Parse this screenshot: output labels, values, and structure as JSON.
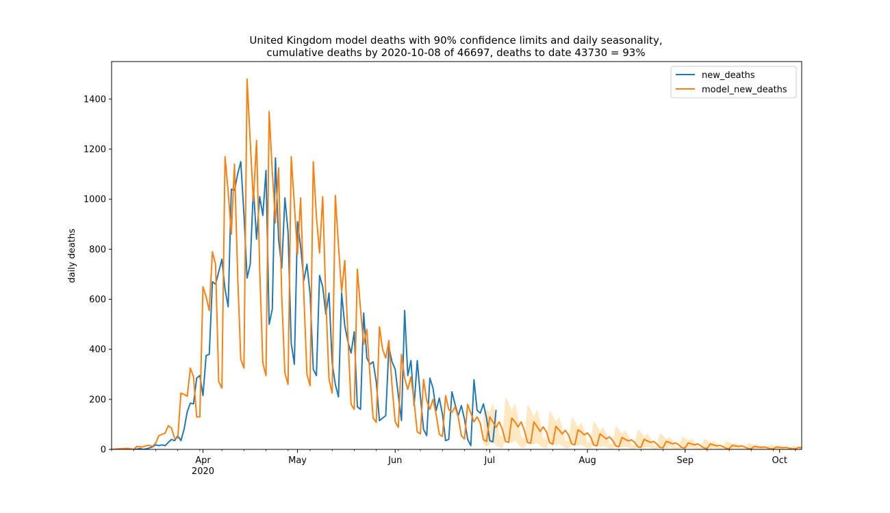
{
  "chart_data": {
    "type": "line",
    "title_line1": "United Kingdom model deaths with 90% confidence limits and daily seasonality,",
    "title_line2": "cumulative deaths by 2020-10-08 of 46697, deaths to date 43730 = 93%",
    "ylabel": "daily deaths",
    "xlabel": "",
    "x_range": [
      "2020-03-03",
      "2020-10-08"
    ],
    "ylim": [
      0,
      1550
    ],
    "grid": false,
    "legend_position": "top-right",
    "y_ticks": [
      0,
      200,
      400,
      600,
      800,
      1000,
      1200,
      1400
    ],
    "x_ticks": [
      {
        "date": "2020-04-01",
        "label": "Apr",
        "sublabel": "2020"
      },
      {
        "date": "2020-05-01",
        "label": "May",
        "sublabel": ""
      },
      {
        "date": "2020-06-01",
        "label": "Jun",
        "sublabel": ""
      },
      {
        "date": "2020-07-01",
        "label": "Jul",
        "sublabel": ""
      },
      {
        "date": "2020-08-01",
        "label": "Aug",
        "sublabel": ""
      },
      {
        "date": "2020-09-01",
        "label": "Sep",
        "sublabel": ""
      },
      {
        "date": "2020-10-01",
        "label": "Oct",
        "sublabel": ""
      }
    ],
    "series": [
      {
        "name": "new_deaths",
        "color": "#1f77b4",
        "start_date": "2020-03-03",
        "values": [
          0,
          0,
          0,
          1,
          0,
          1,
          1,
          0,
          1,
          3,
          0,
          2,
          6,
          10,
          18,
          15,
          18,
          15,
          28,
          40,
          35,
          55,
          35,
          80,
          150,
          185,
          182,
          285,
          295,
          215,
          375,
          380,
          670,
          660,
          710,
          760,
          640,
          570,
          1040,
          1035,
          1100,
          1150,
          940,
          685,
          740,
          1045,
          840,
          1010,
          935,
          1115,
          500,
          560,
          1165,
          840,
          725,
          1005,
          870,
          425,
          340,
          910,
          810,
          675,
          740,
          620,
          320,
          295,
          695,
          650,
          540,
          625,
          345,
          260,
          210,
          625,
          495,
          430,
          385,
          470,
          170,
          160,
          545,
          365,
          340,
          350,
          270,
          115,
          125,
          135,
          410,
          350,
          320,
          215,
          115,
          555,
          295,
          355,
          175,
          355,
          210,
          80,
          55,
          285,
          245,
          155,
          205,
          140,
          35,
          40,
          230,
          180,
          135,
          175,
          120,
          40,
          15,
          278,
          156,
          145,
          182,
          125,
          35,
          30,
          155
        ]
      },
      {
        "name": "model_new_deaths",
        "color": "#ff7f0e",
        "start_date": "2020-03-03",
        "values": [
          0,
          1,
          2,
          3,
          3,
          4,
          2,
          0,
          12,
          10,
          10,
          15,
          16,
          12,
          25,
          55,
          60,
          65,
          95,
          85,
          45,
          45,
          225,
          220,
          212,
          325,
          290,
          130,
          130,
          650,
          610,
          555,
          790,
          740,
          270,
          245,
          1170,
          1030,
          860,
          1140,
          700,
          360,
          325,
          1480,
          1230,
          990,
          1235,
          720,
          345,
          295,
          1350,
          1110,
          905,
          1125,
          610,
          305,
          260,
          1170,
          980,
          780,
          1005,
          620,
          300,
          255,
          1150,
          930,
          785,
          1010,
          595,
          280,
          225,
          1015,
          815,
          630,
          755,
          450,
          180,
          160,
          720,
          560,
          420,
          480,
          295,
          125,
          108,
          490,
          400,
          365,
          435,
          255,
          110,
          88,
          380,
          285,
          240,
          290,
          190,
          70,
          62,
          280,
          195,
          160,
          200,
          140,
          60,
          52,
          215,
          160,
          148,
          170,
          130,
          55,
          42,
          180,
          145,
          110,
          130,
          105,
          38,
          32,
          130,
          110,
          88,
          110,
          80,
          32,
          28,
          125,
          110,
          90,
          110,
          75,
          28,
          24,
          110,
          92,
          72,
          90,
          70,
          28,
          20,
          92,
          78,
          62,
          76,
          58,
          22,
          18,
          78,
          70,
          58,
          66,
          50,
          18,
          14,
          62,
          52,
          42,
          50,
          36,
          14,
          10,
          48,
          40,
          34,
          38,
          28,
          10,
          8,
          40,
          34,
          28,
          32,
          22,
          8,
          6,
          32,
          28,
          22,
          26,
          18,
          7,
          5,
          26,
          22,
          18,
          22,
          14,
          5,
          4,
          22,
          18,
          14,
          16,
          11,
          4,
          3,
          16,
          14,
          12,
          14,
          9,
          3,
          3,
          12,
          10,
          8,
          10,
          7,
          2,
          2,
          10,
          8,
          7,
          8,
          5,
          2,
          2,
          8,
          6,
          6,
          7,
          4,
          1,
          1,
          6
        ]
      }
    ],
    "confidence_band": {
      "name": "90% confidence limits",
      "color": "#ffe8c2",
      "start_date": "2020-06-29",
      "lower": [
        18,
        12,
        20,
        30,
        15,
        8,
        5,
        40,
        30,
        25,
        35,
        20,
        6,
        4,
        35,
        25,
        20,
        25,
        15,
        5,
        3,
        28,
        20,
        16,
        22,
        14,
        4,
        3,
        22,
        18,
        14,
        18,
        11,
        3,
        2,
        18,
        14,
        10,
        13,
        9,
        2,
        2,
        14,
        11,
        8,
        11,
        7,
        2,
        1,
        11,
        9,
        7,
        9,
        6,
        1,
        1,
        9,
        7,
        5,
        7,
        4,
        1,
        1,
        7,
        6,
        4,
        5,
        3,
        1,
        1,
        5,
        4,
        3,
        4,
        2,
        1,
        1,
        4,
        3,
        2,
        3,
        2,
        0,
        0,
        3,
        2,
        2,
        2,
        1,
        0,
        0,
        2,
        2,
        1,
        2,
        1,
        0,
        0,
        2,
        1,
        1,
        1,
        1
      ],
      "upper": [
        150,
        160,
        150,
        185,
        140,
        60,
        50,
        210,
        185,
        155,
        185,
        130,
        50,
        42,
        180,
        160,
        130,
        160,
        115,
        45,
        38,
        155,
        135,
        110,
        130,
        90,
        36,
        30,
        130,
        112,
        90,
        108,
        78,
        30,
        25,
        115,
        95,
        75,
        90,
        65,
        24,
        20,
        95,
        80,
        62,
        75,
        55,
        20,
        16,
        80,
        68,
        52,
        62,
        45,
        16,
        12,
        65,
        55,
        42,
        50,
        36,
        12,
        10,
        52,
        45,
        34,
        42,
        30,
        10,
        8,
        42,
        36,
        28,
        34,
        24,
        8,
        6,
        34,
        28,
        22,
        26,
        18,
        6,
        5,
        26,
        22,
        18,
        20,
        14,
        5,
        4,
        20,
        16,
        14,
        16,
        11,
        4,
        3,
        16,
        13,
        11,
        12,
        8
      ]
    }
  }
}
